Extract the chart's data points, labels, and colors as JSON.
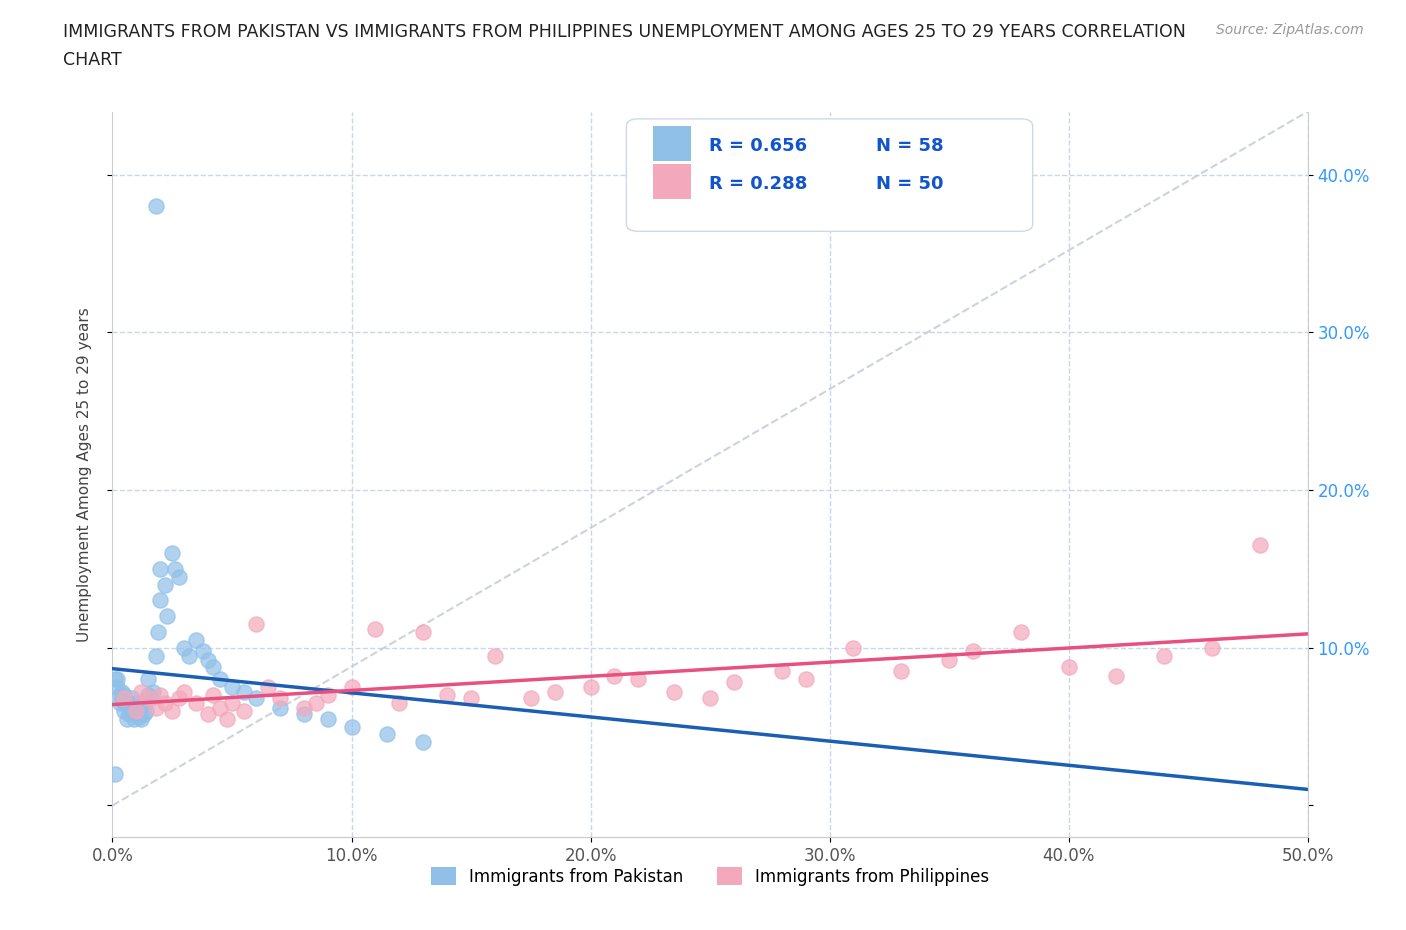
{
  "title_line1": "IMMIGRANTS FROM PAKISTAN VS IMMIGRANTS FROM PHILIPPINES UNEMPLOYMENT AMONG AGES 25 TO 29 YEARS CORRELATION",
  "title_line2": "CHART",
  "source": "Source: ZipAtlas.com",
  "ylabel": "Unemployment Among Ages 25 to 29 years",
  "xlim": [
    0.0,
    0.5
  ],
  "ylim": [
    -0.02,
    0.44
  ],
  "xticks": [
    0.0,
    0.1,
    0.2,
    0.3,
    0.4,
    0.5
  ],
  "xticklabels": [
    "0.0%",
    "10.0%",
    "20.0%",
    "30.0%",
    "40.0%",
    "50.0%"
  ],
  "yticklabels_right": [
    "",
    "10.0%",
    "20.0%",
    "30.0%",
    "40.0%"
  ],
  "pakistan_color": "#90c0e8",
  "philippines_color": "#f4a8bc",
  "pakistan_line_color": "#1a5fb4",
  "philippines_line_color": "#e85080",
  "diag_line_color": "#c0c8d8",
  "pakistan_R": "0.656",
  "pakistan_N": "58",
  "philippines_R": "0.288",
  "philippines_N": "50",
  "legend_label_pakistan": "Immigrants from Pakistan",
  "legend_label_philippines": "Immigrants from Philippines",
  "pakistan_x": [
    0.001,
    0.002,
    0.002,
    0.003,
    0.003,
    0.004,
    0.004,
    0.005,
    0.005,
    0.005,
    0.006,
    0.006,
    0.007,
    0.007,
    0.008,
    0.008,
    0.009,
    0.009,
    0.01,
    0.01,
    0.011,
    0.011,
    0.012,
    0.012,
    0.013,
    0.013,
    0.014,
    0.015,
    0.015,
    0.016,
    0.017,
    0.018,
    0.019,
    0.02,
    0.02,
    0.022,
    0.023,
    0.025,
    0.026,
    0.028,
    0.03,
    0.032,
    0.035,
    0.038,
    0.04,
    0.042,
    0.045,
    0.05,
    0.055,
    0.06,
    0.07,
    0.08,
    0.09,
    0.1,
    0.115,
    0.13,
    0.001,
    0.018
  ],
  "pakistan_y": [
    0.08,
    0.075,
    0.08,
    0.065,
    0.07,
    0.068,
    0.072,
    0.06,
    0.065,
    0.07,
    0.055,
    0.065,
    0.058,
    0.062,
    0.06,
    0.068,
    0.055,
    0.062,
    0.058,
    0.065,
    0.056,
    0.06,
    0.055,
    0.062,
    0.058,
    0.065,
    0.06,
    0.07,
    0.08,
    0.068,
    0.072,
    0.095,
    0.11,
    0.13,
    0.15,
    0.14,
    0.12,
    0.16,
    0.15,
    0.145,
    0.1,
    0.095,
    0.105,
    0.098,
    0.092,
    0.088,
    0.08,
    0.075,
    0.072,
    0.068,
    0.062,
    0.058,
    0.055,
    0.05,
    0.045,
    0.04,
    0.02,
    0.38
  ],
  "philippines_x": [
    0.005,
    0.01,
    0.012,
    0.015,
    0.018,
    0.02,
    0.022,
    0.025,
    0.028,
    0.03,
    0.035,
    0.04,
    0.042,
    0.045,
    0.048,
    0.05,
    0.055,
    0.06,
    0.065,
    0.07,
    0.08,
    0.085,
    0.09,
    0.1,
    0.11,
    0.12,
    0.13,
    0.14,
    0.15,
    0.16,
    0.175,
    0.185,
    0.2,
    0.21,
    0.22,
    0.235,
    0.25,
    0.26,
    0.28,
    0.29,
    0.31,
    0.33,
    0.35,
    0.36,
    0.38,
    0.4,
    0.42,
    0.44,
    0.46,
    0.48
  ],
  "philippines_y": [
    0.068,
    0.06,
    0.072,
    0.068,
    0.062,
    0.07,
    0.065,
    0.06,
    0.068,
    0.072,
    0.065,
    0.058,
    0.07,
    0.062,
    0.055,
    0.065,
    0.06,
    0.115,
    0.075,
    0.068,
    0.062,
    0.065,
    0.07,
    0.075,
    0.112,
    0.065,
    0.11,
    0.07,
    0.068,
    0.095,
    0.068,
    0.072,
    0.075,
    0.082,
    0.08,
    0.072,
    0.068,
    0.078,
    0.085,
    0.08,
    0.1,
    0.085,
    0.092,
    0.098,
    0.11,
    0.088,
    0.082,
    0.095,
    0.1,
    0.165
  ]
}
